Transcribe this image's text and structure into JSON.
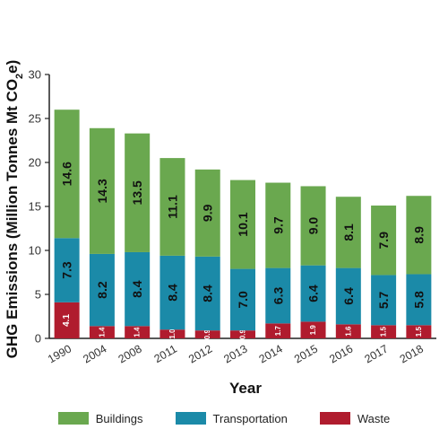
{
  "chart_data": {
    "type": "bar",
    "stacked": true,
    "title": "",
    "xlabel": "Year",
    "ylabel_main": "GHG Emissions (Million Tonnes Mt CO",
    "ylabel_sub": "2",
    "ylabel_end": "e)",
    "ylim": [
      0,
      30
    ],
    "yticks": [
      "0",
      "5",
      "10",
      "15",
      "20",
      "25",
      "30"
    ],
    "grid": false,
    "legend_position": "bottom",
    "categories": [
      "1990",
      "2004",
      "2008",
      "2011",
      "2012",
      "2013",
      "2014",
      "2015",
      "2016",
      "2017",
      "2018"
    ],
    "series": [
      {
        "name": "Waste",
        "color": "#b01c2e",
        "values": [
          4.1,
          1.4,
          1.4,
          1.0,
          0.9,
          0.9,
          1.7,
          1.9,
          1.6,
          1.5,
          1.5
        ],
        "labels": [
          "4.1",
          "1.4",
          "1.4",
          "1.0",
          "0.9",
          "0.9",
          "1.7",
          "1.9",
          "1.6",
          "1.5",
          "1.5"
        ]
      },
      {
        "name": "Transportation",
        "color": "#1b8aa8",
        "values": [
          7.3,
          8.2,
          8.4,
          8.4,
          8.4,
          7.0,
          6.3,
          6.4,
          6.4,
          5.7,
          5.8
        ],
        "labels": [
          "7.3",
          "8.2",
          "8.4",
          "8.4",
          "8.4",
          "7.0",
          "6.3",
          "6.4",
          "6.4",
          "5.7",
          "5.8"
        ]
      },
      {
        "name": "Buildings",
        "color": "#6aa84f",
        "values": [
          14.6,
          14.3,
          13.5,
          11.1,
          9.9,
          10.1,
          9.7,
          9.0,
          8.1,
          7.9,
          8.9
        ],
        "labels": [
          "14.6",
          "14.3",
          "13.5",
          "11.1",
          "9.9",
          "10.1",
          "9.7",
          "9.0",
          "8.1",
          "7.9",
          "8.9"
        ]
      }
    ],
    "legend": [
      {
        "name": "Buildings",
        "color": "#6aa84f"
      },
      {
        "name": "Transportation",
        "color": "#1b8aa8"
      },
      {
        "name": "Waste",
        "color": "#b01c2e"
      }
    ]
  }
}
